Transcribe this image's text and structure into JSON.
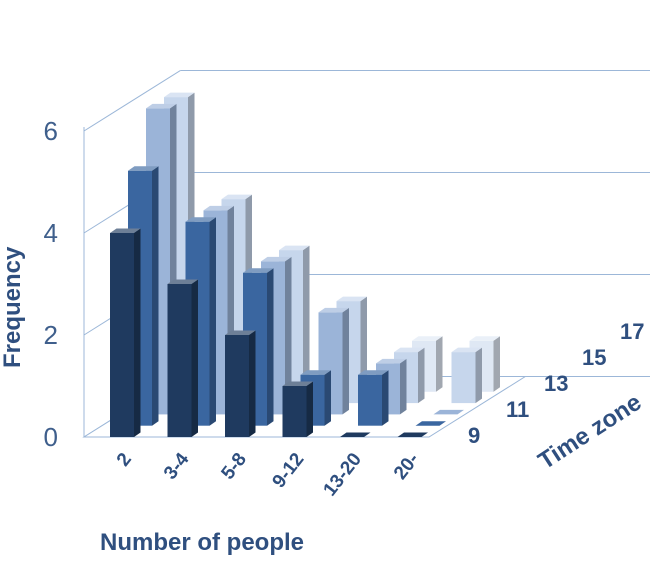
{
  "chart_data": {
    "type": "bar",
    "variant": "3d-column",
    "xlabel": "Number of people",
    "ylabel": "Frequency",
    "zlabel": "Time zone",
    "categories": [
      "2",
      "3-4",
      "5-8",
      "9-12",
      "13-20",
      "20-"
    ],
    "y_ticks": [
      "0",
      "2",
      "4",
      "6"
    ],
    "ylim": [
      0,
      6
    ],
    "z_ticks": [
      "9",
      "11",
      "13",
      "15",
      "17"
    ],
    "grid": true,
    "series": [
      {
        "name": "9",
        "color": "#1f3a5f",
        "values": [
          4,
          3,
          2,
          1,
          0,
          0
        ]
      },
      {
        "name": "11",
        "color": "#3a66a0",
        "values": [
          5,
          4,
          3,
          1,
          1,
          0
        ]
      },
      {
        "name": "13",
        "color": "#9bb4d8",
        "values": [
          6,
          4,
          3,
          2,
          1,
          0
        ]
      },
      {
        "name": "15",
        "color": "#c6d6ec",
        "values": [
          6,
          4,
          3,
          2,
          1,
          1
        ]
      },
      {
        "name": "17",
        "color": "#dfe8f4",
        "values": [
          0,
          0,
          0,
          0,
          1,
          1
        ]
      }
    ]
  }
}
